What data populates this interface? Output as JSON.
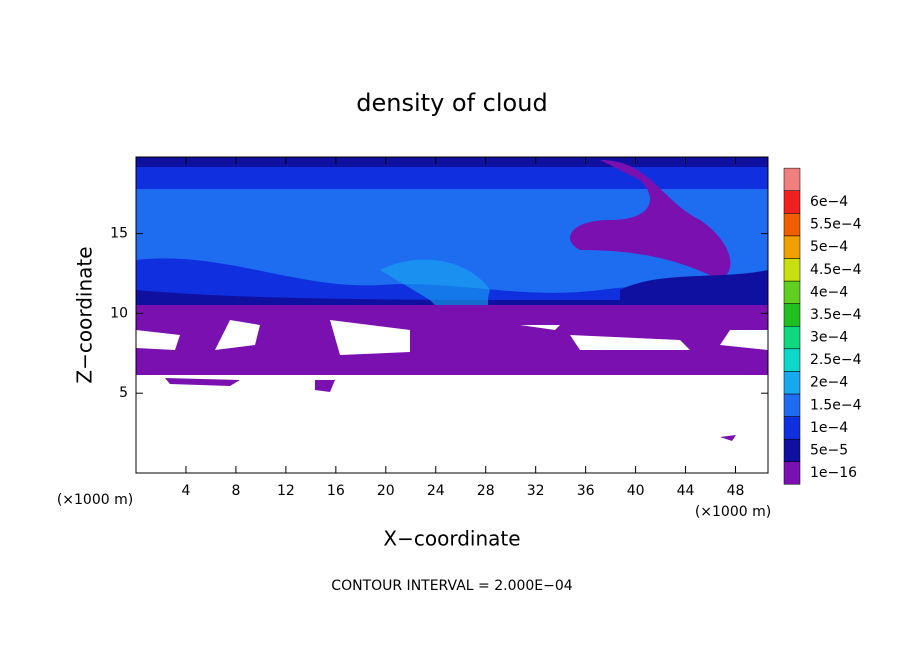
{
  "chart_data": {
    "type": "contour",
    "title": "density of cloud",
    "xlabel": "X−coordinate",
    "ylabel": "Z−coordinate",
    "x_unit": "(×1000 m)",
    "x_unit_right": "(×1000 m)",
    "footer": "CONTOUR INTERVAL = 2.000E−04",
    "xlim": [
      0,
      50.6
    ],
    "ylim": [
      0,
      19.8
    ],
    "xticks": [
      4,
      8,
      12,
      16,
      20,
      24,
      28,
      32,
      36,
      40,
      44,
      48
    ],
    "yticks": [
      5,
      10,
      15
    ],
    "colorbar": {
      "levels": [
        {
          "value": 1e-16,
          "label": "1e−16"
        },
        {
          "value": 5e-05,
          "label": "5e−5"
        },
        {
          "value": 0.0001,
          "label": "1e−4"
        },
        {
          "value": 0.00015,
          "label": "1.5e−4"
        },
        {
          "value": 0.0002,
          "label": "2e−4"
        },
        {
          "value": 0.00025,
          "label": "2.5e−4"
        },
        {
          "value": 0.0003,
          "label": "3e−4"
        },
        {
          "value": 0.00035,
          "label": "3.5e−4"
        },
        {
          "value": 0.0004,
          "label": "4e−4"
        },
        {
          "value": 0.00045,
          "label": "4.5e−4"
        },
        {
          "value": 0.0005,
          "label": "5e−4"
        },
        {
          "value": 0.00055,
          "label": "5.5e−4"
        },
        {
          "value": 0.0006,
          "label": "6e−4"
        }
      ],
      "colors": [
        "#7a10b0",
        "#1010a0",
        "#1030e0",
        "#1e6cf0",
        "#18a8f0",
        "#10d8c8",
        "#10d880",
        "#20c020",
        "#60d020",
        "#c8e010",
        "#f0a000",
        "#f06000",
        "#f02020",
        "#f08080"
      ]
    }
  }
}
